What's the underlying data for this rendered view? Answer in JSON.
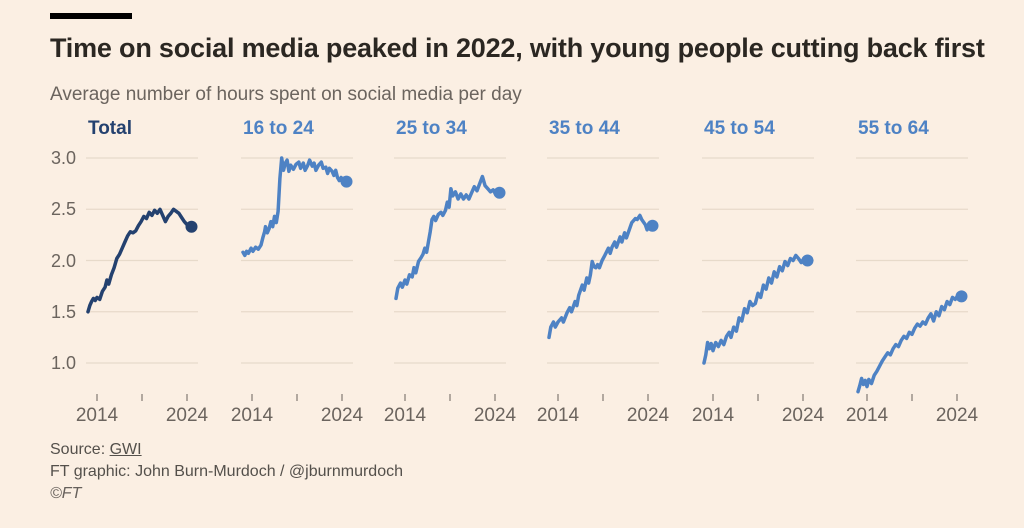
{
  "page": {
    "title": "Time on social media peaked in 2022, with young people cutting back first",
    "subtitle": "Average number of hours spent on social media per day",
    "source_prefix": "Source: ",
    "source_name": "GWI",
    "credit": "FT graphic: John Burn-Murdoch / @jburnmurdoch",
    "copyright": "©FT"
  },
  "colors": {
    "background": "#FBEFE3",
    "top_bar": "#000000",
    "title_text": "#2B2722",
    "subtitle_text": "#6B645E",
    "axis_text": "#6B645E",
    "grid": "#E7DACA",
    "tick": "#9A9188",
    "total_line": "#24416F",
    "age_line": "#4E82C4",
    "footer_text": "#54504B"
  },
  "chart_data": {
    "type": "line",
    "layout": "small-multiples",
    "title": "Time on social media peaked in 2022, with young people cutting back first",
    "subtitle": "Average number of hours spent on social media per day",
    "x_range": [
      2013,
      2025
    ],
    "y_range": [
      0.7,
      3.0
    ],
    "grid": true,
    "y_ticks": [
      {
        "value": 3.0,
        "label": "3.0"
      },
      {
        "value": 2.5,
        "label": "2.5"
      },
      {
        "value": 2.0,
        "label": "2.0"
      },
      {
        "value": 1.5,
        "label": "1.5"
      },
      {
        "value": 1.0,
        "label": "1.0"
      }
    ],
    "x_ticks": [
      {
        "year": 2014,
        "label": "2014"
      },
      {
        "year": 2019,
        "label": ""
      },
      {
        "year": 2024,
        "label": "2024"
      }
    ],
    "panels": [
      {
        "label": "Total",
        "color": "#24416F",
        "end_value": 2.33,
        "points": [
          [
            2013.0,
            1.5
          ],
          [
            2013.2,
            1.56
          ],
          [
            2013.4,
            1.6
          ],
          [
            2013.6,
            1.63
          ],
          [
            2013.8,
            1.61
          ],
          [
            2014.0,
            1.64
          ],
          [
            2014.3,
            1.62
          ],
          [
            2014.6,
            1.7
          ],
          [
            2014.9,
            1.74
          ],
          [
            2015.1,
            1.81
          ],
          [
            2015.3,
            1.77
          ],
          [
            2015.6,
            1.86
          ],
          [
            2015.9,
            1.93
          ],
          [
            2016.2,
            2.02
          ],
          [
            2016.5,
            2.06
          ],
          [
            2016.8,
            2.12
          ],
          [
            2017.1,
            2.18
          ],
          [
            2017.4,
            2.24
          ],
          [
            2017.7,
            2.28
          ],
          [
            2018.0,
            2.27
          ],
          [
            2018.3,
            2.29
          ],
          [
            2018.6,
            2.34
          ],
          [
            2018.9,
            2.38
          ],
          [
            2019.2,
            2.43
          ],
          [
            2019.5,
            2.41
          ],
          [
            2019.8,
            2.47
          ],
          [
            2020.1,
            2.44
          ],
          [
            2020.4,
            2.49
          ],
          [
            2020.7,
            2.46
          ],
          [
            2021.0,
            2.5
          ],
          [
            2021.3,
            2.44
          ],
          [
            2021.6,
            2.38
          ],
          [
            2021.9,
            2.43
          ],
          [
            2022.2,
            2.46
          ],
          [
            2022.5,
            2.5
          ],
          [
            2022.8,
            2.48
          ],
          [
            2023.1,
            2.46
          ],
          [
            2023.4,
            2.42
          ],
          [
            2023.7,
            2.38
          ],
          [
            2024.0,
            2.35
          ],
          [
            2024.5,
            2.33
          ]
        ]
      },
      {
        "label": "16 to 24",
        "color": "#4E82C4",
        "end_value": 2.77,
        "points": [
          [
            2013.0,
            2.08
          ],
          [
            2013.2,
            2.05
          ],
          [
            2013.4,
            2.09
          ],
          [
            2013.6,
            2.07
          ],
          [
            2013.9,
            2.12
          ],
          [
            2014.1,
            2.09
          ],
          [
            2014.4,
            2.13
          ],
          [
            2014.7,
            2.11
          ],
          [
            2015.0,
            2.15
          ],
          [
            2015.2,
            2.22
          ],
          [
            2015.4,
            2.28
          ],
          [
            2015.5,
            2.33
          ],
          [
            2015.7,
            2.27
          ],
          [
            2015.9,
            2.31
          ],
          [
            2016.1,
            2.38
          ],
          [
            2016.3,
            2.33
          ],
          [
            2016.5,
            2.43
          ],
          [
            2016.7,
            2.37
          ],
          [
            2016.9,
            2.48
          ],
          [
            2017.1,
            2.8
          ],
          [
            2017.3,
            3.0
          ],
          [
            2017.5,
            2.88
          ],
          [
            2017.7,
            2.95
          ],
          [
            2017.9,
            2.98
          ],
          [
            2018.1,
            2.87
          ],
          [
            2018.3,
            2.93
          ],
          [
            2018.6,
            2.89
          ],
          [
            2018.9,
            2.94
          ],
          [
            2019.2,
            2.96
          ],
          [
            2019.4,
            2.9
          ],
          [
            2019.7,
            2.95
          ],
          [
            2019.9,
            2.88
          ],
          [
            2020.2,
            2.93
          ],
          [
            2020.4,
            2.98
          ],
          [
            2020.7,
            2.92
          ],
          [
            2020.9,
            2.95
          ],
          [
            2021.1,
            2.88
          ],
          [
            2021.4,
            2.93
          ],
          [
            2021.7,
            2.96
          ],
          [
            2021.9,
            2.9
          ],
          [
            2022.2,
            2.91
          ],
          [
            2022.4,
            2.85
          ],
          [
            2022.6,
            2.9
          ],
          [
            2022.9,
            2.87
          ],
          [
            2023.1,
            2.83
          ],
          [
            2023.3,
            2.88
          ],
          [
            2023.5,
            2.81
          ],
          [
            2023.7,
            2.78
          ],
          [
            2023.9,
            2.81
          ],
          [
            2024.1,
            2.78
          ],
          [
            2024.5,
            2.77
          ]
        ]
      },
      {
        "label": "25 to 34",
        "color": "#4E82C4",
        "end_value": 2.66,
        "points": [
          [
            2013.0,
            1.63
          ],
          [
            2013.2,
            1.73
          ],
          [
            2013.5,
            1.78
          ],
          [
            2013.7,
            1.74
          ],
          [
            2014.0,
            1.81
          ],
          [
            2014.2,
            1.77
          ],
          [
            2014.5,
            1.86
          ],
          [
            2014.8,
            1.84
          ],
          [
            2015.0,
            1.93
          ],
          [
            2015.2,
            1.88
          ],
          [
            2015.5,
            1.99
          ],
          [
            2015.8,
            2.03
          ],
          [
            2016.0,
            2.06
          ],
          [
            2016.2,
            2.12
          ],
          [
            2016.4,
            2.08
          ],
          [
            2016.6,
            2.18
          ],
          [
            2016.8,
            2.28
          ],
          [
            2017.0,
            2.4
          ],
          [
            2017.2,
            2.43
          ],
          [
            2017.4,
            2.39
          ],
          [
            2017.7,
            2.45
          ],
          [
            2018.0,
            2.47
          ],
          [
            2018.2,
            2.44
          ],
          [
            2018.5,
            2.49
          ],
          [
            2018.7,
            2.57
          ],
          [
            2018.9,
            2.52
          ],
          [
            2019.1,
            2.7
          ],
          [
            2019.3,
            2.63
          ],
          [
            2019.6,
            2.67
          ],
          [
            2019.9,
            2.6
          ],
          [
            2020.2,
            2.65
          ],
          [
            2020.5,
            2.6
          ],
          [
            2020.8,
            2.64
          ],
          [
            2021.1,
            2.6
          ],
          [
            2021.4,
            2.66
          ],
          [
            2021.7,
            2.72
          ],
          [
            2022.0,
            2.68
          ],
          [
            2022.3,
            2.75
          ],
          [
            2022.6,
            2.82
          ],
          [
            2022.9,
            2.73
          ],
          [
            2023.2,
            2.7
          ],
          [
            2023.5,
            2.67
          ],
          [
            2023.8,
            2.69
          ],
          [
            2024.1,
            2.64
          ],
          [
            2024.5,
            2.66
          ]
        ]
      },
      {
        "label": "35 to 44",
        "color": "#4E82C4",
        "end_value": 2.34,
        "points": [
          [
            2013.0,
            1.25
          ],
          [
            2013.2,
            1.35
          ],
          [
            2013.5,
            1.4
          ],
          [
            2013.7,
            1.35
          ],
          [
            2014.0,
            1.4
          ],
          [
            2014.4,
            1.44
          ],
          [
            2014.6,
            1.4
          ],
          [
            2015.0,
            1.49
          ],
          [
            2015.3,
            1.54
          ],
          [
            2015.5,
            1.5
          ],
          [
            2015.9,
            1.6
          ],
          [
            2016.1,
            1.56
          ],
          [
            2016.3,
            1.66
          ],
          [
            2016.7,
            1.76
          ],
          [
            2016.9,
            1.71
          ],
          [
            2017.2,
            1.83
          ],
          [
            2017.4,
            1.78
          ],
          [
            2017.6,
            1.86
          ],
          [
            2017.8,
            1.99
          ],
          [
            2018.0,
            1.94
          ],
          [
            2018.2,
            1.93
          ],
          [
            2018.4,
            1.96
          ],
          [
            2018.6,
            1.93
          ],
          [
            2018.9,
            2.0
          ],
          [
            2019.2,
            2.05
          ],
          [
            2019.6,
            2.12
          ],
          [
            2019.8,
            2.07
          ],
          [
            2020.0,
            2.13
          ],
          [
            2020.3,
            2.18
          ],
          [
            2020.5,
            2.13
          ],
          [
            2020.9,
            2.23
          ],
          [
            2021.1,
            2.18
          ],
          [
            2021.4,
            2.27
          ],
          [
            2021.6,
            2.22
          ],
          [
            2022.0,
            2.32
          ],
          [
            2022.2,
            2.37
          ],
          [
            2022.6,
            2.41
          ],
          [
            2022.8,
            2.4
          ],
          [
            2023.1,
            2.44
          ],
          [
            2023.3,
            2.4
          ],
          [
            2023.7,
            2.35
          ],
          [
            2023.9,
            2.3
          ],
          [
            2024.2,
            2.36
          ],
          [
            2024.5,
            2.34
          ]
        ]
      },
      {
        "label": "45 to 54",
        "color": "#4E82C4",
        "end_value": 2.0,
        "points": [
          [
            2013.0,
            1.0
          ],
          [
            2013.2,
            1.08
          ],
          [
            2013.4,
            1.2
          ],
          [
            2013.6,
            1.14
          ],
          [
            2013.8,
            1.19
          ],
          [
            2014.0,
            1.12
          ],
          [
            2014.3,
            1.2
          ],
          [
            2014.6,
            1.16
          ],
          [
            2014.9,
            1.22
          ],
          [
            2015.2,
            1.18
          ],
          [
            2015.5,
            1.26
          ],
          [
            2015.8,
            1.3
          ],
          [
            2016.0,
            1.25
          ],
          [
            2016.3,
            1.35
          ],
          [
            2016.6,
            1.31
          ],
          [
            2016.9,
            1.44
          ],
          [
            2017.2,
            1.41
          ],
          [
            2017.5,
            1.53
          ],
          [
            2017.8,
            1.49
          ],
          [
            2018.1,
            1.6
          ],
          [
            2018.4,
            1.56
          ],
          [
            2018.7,
            1.58
          ],
          [
            2019.0,
            1.68
          ],
          [
            2019.3,
            1.64
          ],
          [
            2019.6,
            1.76
          ],
          [
            2019.9,
            1.72
          ],
          [
            2020.2,
            1.83
          ],
          [
            2020.5,
            1.78
          ],
          [
            2020.8,
            1.89
          ],
          [
            2021.1,
            1.84
          ],
          [
            2021.4,
            1.94
          ],
          [
            2021.7,
            1.9
          ],
          [
            2022.0,
            1.99
          ],
          [
            2022.3,
            1.95
          ],
          [
            2022.6,
            2.02
          ],
          [
            2022.9,
            2.0
          ],
          [
            2023.2,
            2.05
          ],
          [
            2023.5,
            2.02
          ],
          [
            2023.8,
            1.98
          ],
          [
            2024.1,
            2.02
          ],
          [
            2024.5,
            2.0
          ]
        ]
      },
      {
        "label": "55 to 64",
        "color": "#4E82C4",
        "end_value": 1.65,
        "points": [
          [
            2013.0,
            0.72
          ],
          [
            2013.2,
            0.78
          ],
          [
            2013.4,
            0.85
          ],
          [
            2013.6,
            0.79
          ],
          [
            2013.8,
            0.83
          ],
          [
            2014.0,
            0.77
          ],
          [
            2014.2,
            0.84
          ],
          [
            2014.5,
            0.8
          ],
          [
            2014.8,
            0.88
          ],
          [
            2015.1,
            0.92
          ],
          [
            2015.4,
            0.97
          ],
          [
            2015.7,
            1.02
          ],
          [
            2016.0,
            1.06
          ],
          [
            2016.3,
            1.1
          ],
          [
            2016.6,
            1.08
          ],
          [
            2016.9,
            1.14
          ],
          [
            2017.2,
            1.18
          ],
          [
            2017.5,
            1.16
          ],
          [
            2017.8,
            1.22
          ],
          [
            2018.1,
            1.26
          ],
          [
            2018.4,
            1.24
          ],
          [
            2018.7,
            1.3
          ],
          [
            2019.0,
            1.28
          ],
          [
            2019.3,
            1.34
          ],
          [
            2019.6,
            1.38
          ],
          [
            2019.9,
            1.36
          ],
          [
            2020.2,
            1.4
          ],
          [
            2020.5,
            1.38
          ],
          [
            2020.8,
            1.44
          ],
          [
            2021.1,
            1.48
          ],
          [
            2021.4,
            1.41
          ],
          [
            2021.7,
            1.5
          ],
          [
            2022.0,
            1.46
          ],
          [
            2022.3,
            1.55
          ],
          [
            2022.6,
            1.52
          ],
          [
            2022.9,
            1.6
          ],
          [
            2023.2,
            1.57
          ],
          [
            2023.5,
            1.64
          ],
          [
            2023.8,
            1.62
          ],
          [
            2024.1,
            1.66
          ],
          [
            2024.5,
            1.65
          ]
        ]
      }
    ]
  }
}
